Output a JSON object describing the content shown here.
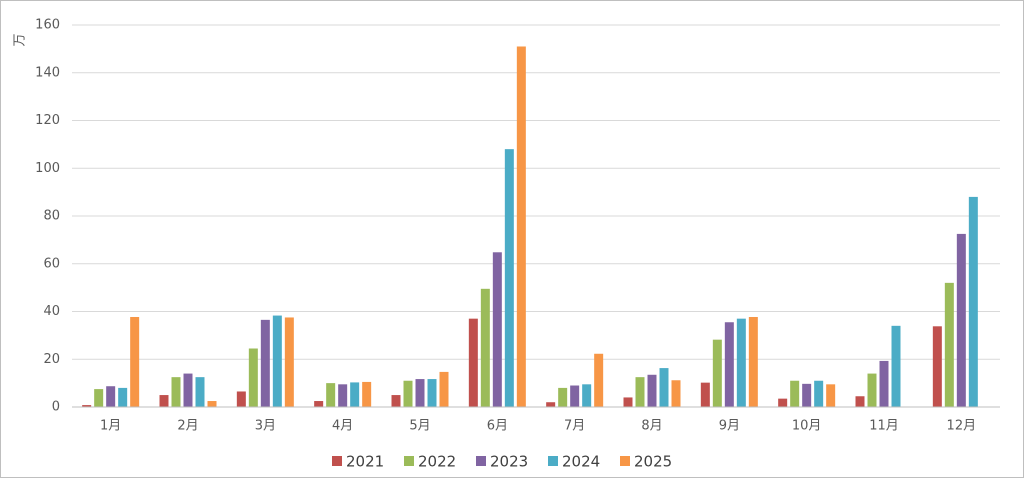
{
  "chart_data": {
    "type": "bar",
    "y_label": "万",
    "categories": [
      "1月",
      "2月",
      "3月",
      "4月",
      "5月",
      "6月",
      "7月",
      "8月",
      "9月",
      "10月",
      "11月",
      "12月"
    ],
    "series": [
      {
        "name": "2021",
        "color": "#c0504d",
        "values": [
          0.8,
          5,
          6.5,
          2.5,
          5,
          37,
          2,
          4,
          10.2,
          3.5,
          4.5,
          33.8
        ]
      },
      {
        "name": "2022",
        "color": "#9bbb59",
        "values": [
          7.5,
          12.5,
          24.5,
          10,
          11,
          49.5,
          8,
          12.5,
          28.2,
          11,
          14,
          52
        ]
      },
      {
        "name": "2023",
        "color": "#8064a2",
        "values": [
          8.7,
          14,
          36.5,
          9.5,
          11.7,
          64.8,
          9,
          13.5,
          35.5,
          9.7,
          19.3,
          72.5
        ]
      },
      {
        "name": "2024",
        "color": "#4bacc6",
        "values": [
          8,
          12.5,
          38.3,
          10.3,
          11.7,
          108,
          9.5,
          16.3,
          37,
          11,
          34,
          88
        ]
      },
      {
        "name": "2025",
        "color": "#f79646",
        "values": [
          37.7,
          2.5,
          37.5,
          10.5,
          14.7,
          151,
          22.3,
          11.2,
          37.7,
          9.5,
          null,
          null
        ]
      }
    ],
    "ylim": [
      0,
      160
    ],
    "yticks": [
      0,
      20,
      40,
      60,
      80,
      100,
      120,
      140,
      160
    ],
    "grid": true,
    "legend": "bottom"
  }
}
